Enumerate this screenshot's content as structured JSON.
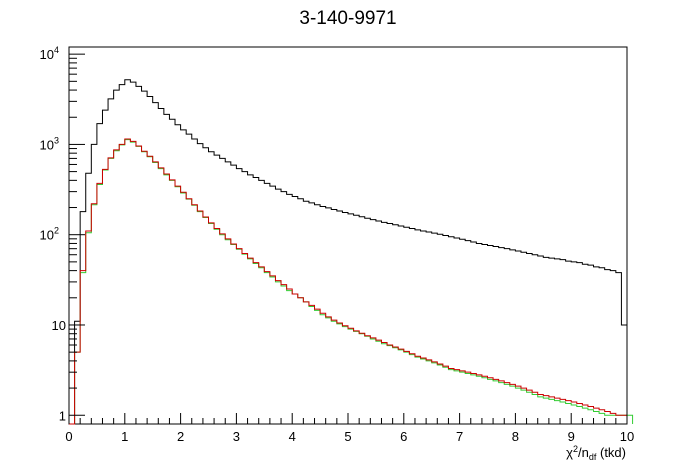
{
  "chart_data": {
    "type": "line",
    "title": "3-140-9971",
    "xlabel": {
      "base": "χ",
      "sup": "2",
      "mid": "/n",
      "sub": "df",
      "tail": " (tkd)"
    },
    "ylabel": "",
    "xlim": [
      0,
      10
    ],
    "ylim": [
      0.8,
      12000
    ],
    "yscale": "log",
    "grid": false,
    "x_tick_labels": [
      "0",
      "1",
      "2",
      "3",
      "4",
      "5",
      "6",
      "7",
      "8",
      "9",
      "10"
    ],
    "y_tick_labels": [
      {
        "value": 1,
        "base": "1",
        "exp": ""
      },
      {
        "value": 10,
        "base": "10",
        "exp": ""
      },
      {
        "value": 100,
        "base": "10",
        "exp": "2"
      },
      {
        "value": 1000,
        "base": "10",
        "exp": "3"
      },
      {
        "value": 10000,
        "base": "10",
        "exp": "4"
      }
    ],
    "bin_width": 0.1,
    "series": [
      {
        "color": "#000000",
        "values": [
          0.8,
          11,
          180,
          480,
          1000,
          1700,
          2400,
          3200,
          4000,
          4600,
          5200,
          4900,
          4400,
          3900,
          3400,
          2900,
          2500,
          2150,
          1900,
          1650,
          1450,
          1300,
          1150,
          1020,
          920,
          830,
          760,
          700,
          640,
          590,
          540,
          500,
          460,
          430,
          400,
          370,
          345,
          320,
          300,
          280,
          265,
          250,
          235,
          225,
          215,
          205,
          198,
          190,
          183,
          176,
          170,
          164,
          158,
          152,
          147,
          142,
          137,
          133,
          129,
          125,
          121,
          117,
          113,
          110,
          107,
          104,
          101,
          98,
          95,
          92,
          89,
          86,
          83,
          80,
          78,
          76,
          74,
          72,
          70,
          68,
          66,
          64,
          62,
          60,
          58,
          56,
          55,
          54,
          53,
          51,
          50,
          49,
          47,
          46,
          44,
          43,
          41,
          40,
          38,
          10
        ]
      },
      {
        "color": "#33cc33",
        "values": [
          0.8,
          5,
          38,
          105,
          215,
          360,
          520,
          700,
          850,
          990,
          1130,
          1060,
          950,
          830,
          730,
          630,
          540,
          460,
          400,
          340,
          290,
          248,
          212,
          180,
          155,
          133,
          115,
          100,
          88,
          78,
          69,
          61,
          54,
          48,
          43,
          38,
          34,
          30,
          27,
          24,
          22,
          20,
          18,
          16,
          14.5,
          13,
          12,
          11,
          10.3,
          9.6,
          9,
          8.5,
          8,
          7.5,
          7,
          6.6,
          6.2,
          5.9,
          5.6,
          5.3,
          5,
          4.7,
          4.4,
          4.2,
          4,
          3.8,
          3.6,
          3.4,
          3.2,
          3.1,
          3,
          2.9,
          2.8,
          2.7,
          2.6,
          2.5,
          2.4,
          2.3,
          2.2,
          2.1,
          2,
          1.9,
          1.8,
          1.7,
          1.6,
          1.55,
          1.5,
          1.45,
          1.4,
          1.35,
          1.3,
          1.25,
          1.2,
          1.15,
          1.1,
          1.05,
          1,
          1,
          1,
          1,
          1
        ]
      },
      {
        "color": "#cc0000",
        "values": [
          0.8,
          5,
          40,
          110,
          220,
          370,
          530,
          710,
          870,
          1000,
          1150,
          1080,
          960,
          840,
          740,
          640,
          550,
          470,
          405,
          345,
          295,
          250,
          215,
          183,
          157,
          135,
          117,
          102,
          90,
          79,
          70,
          62,
          55,
          49,
          44,
          39,
          35,
          31,
          28,
          25,
          22,
          20,
          18,
          16.5,
          15,
          13.5,
          12.3,
          11.3,
          10.5,
          9.8,
          9.2,
          8.6,
          8.1,
          7.6,
          7.2,
          6.8,
          6.4,
          6,
          5.7,
          5.4,
          5.1,
          4.8,
          4.5,
          4.3,
          4.1,
          3.9,
          3.7,
          3.5,
          3.3,
          3.2,
          3.1,
          3,
          2.9,
          2.8,
          2.7,
          2.6,
          2.5,
          2.4,
          2.3,
          2.2,
          2.1,
          2,
          1.9,
          1.8,
          1.7,
          1.65,
          1.6,
          1.55,
          1.5,
          1.45,
          1.4,
          1.35,
          1.3,
          1.25,
          1.2,
          1.15,
          1.1,
          1.05,
          1,
          1
        ]
      }
    ]
  }
}
